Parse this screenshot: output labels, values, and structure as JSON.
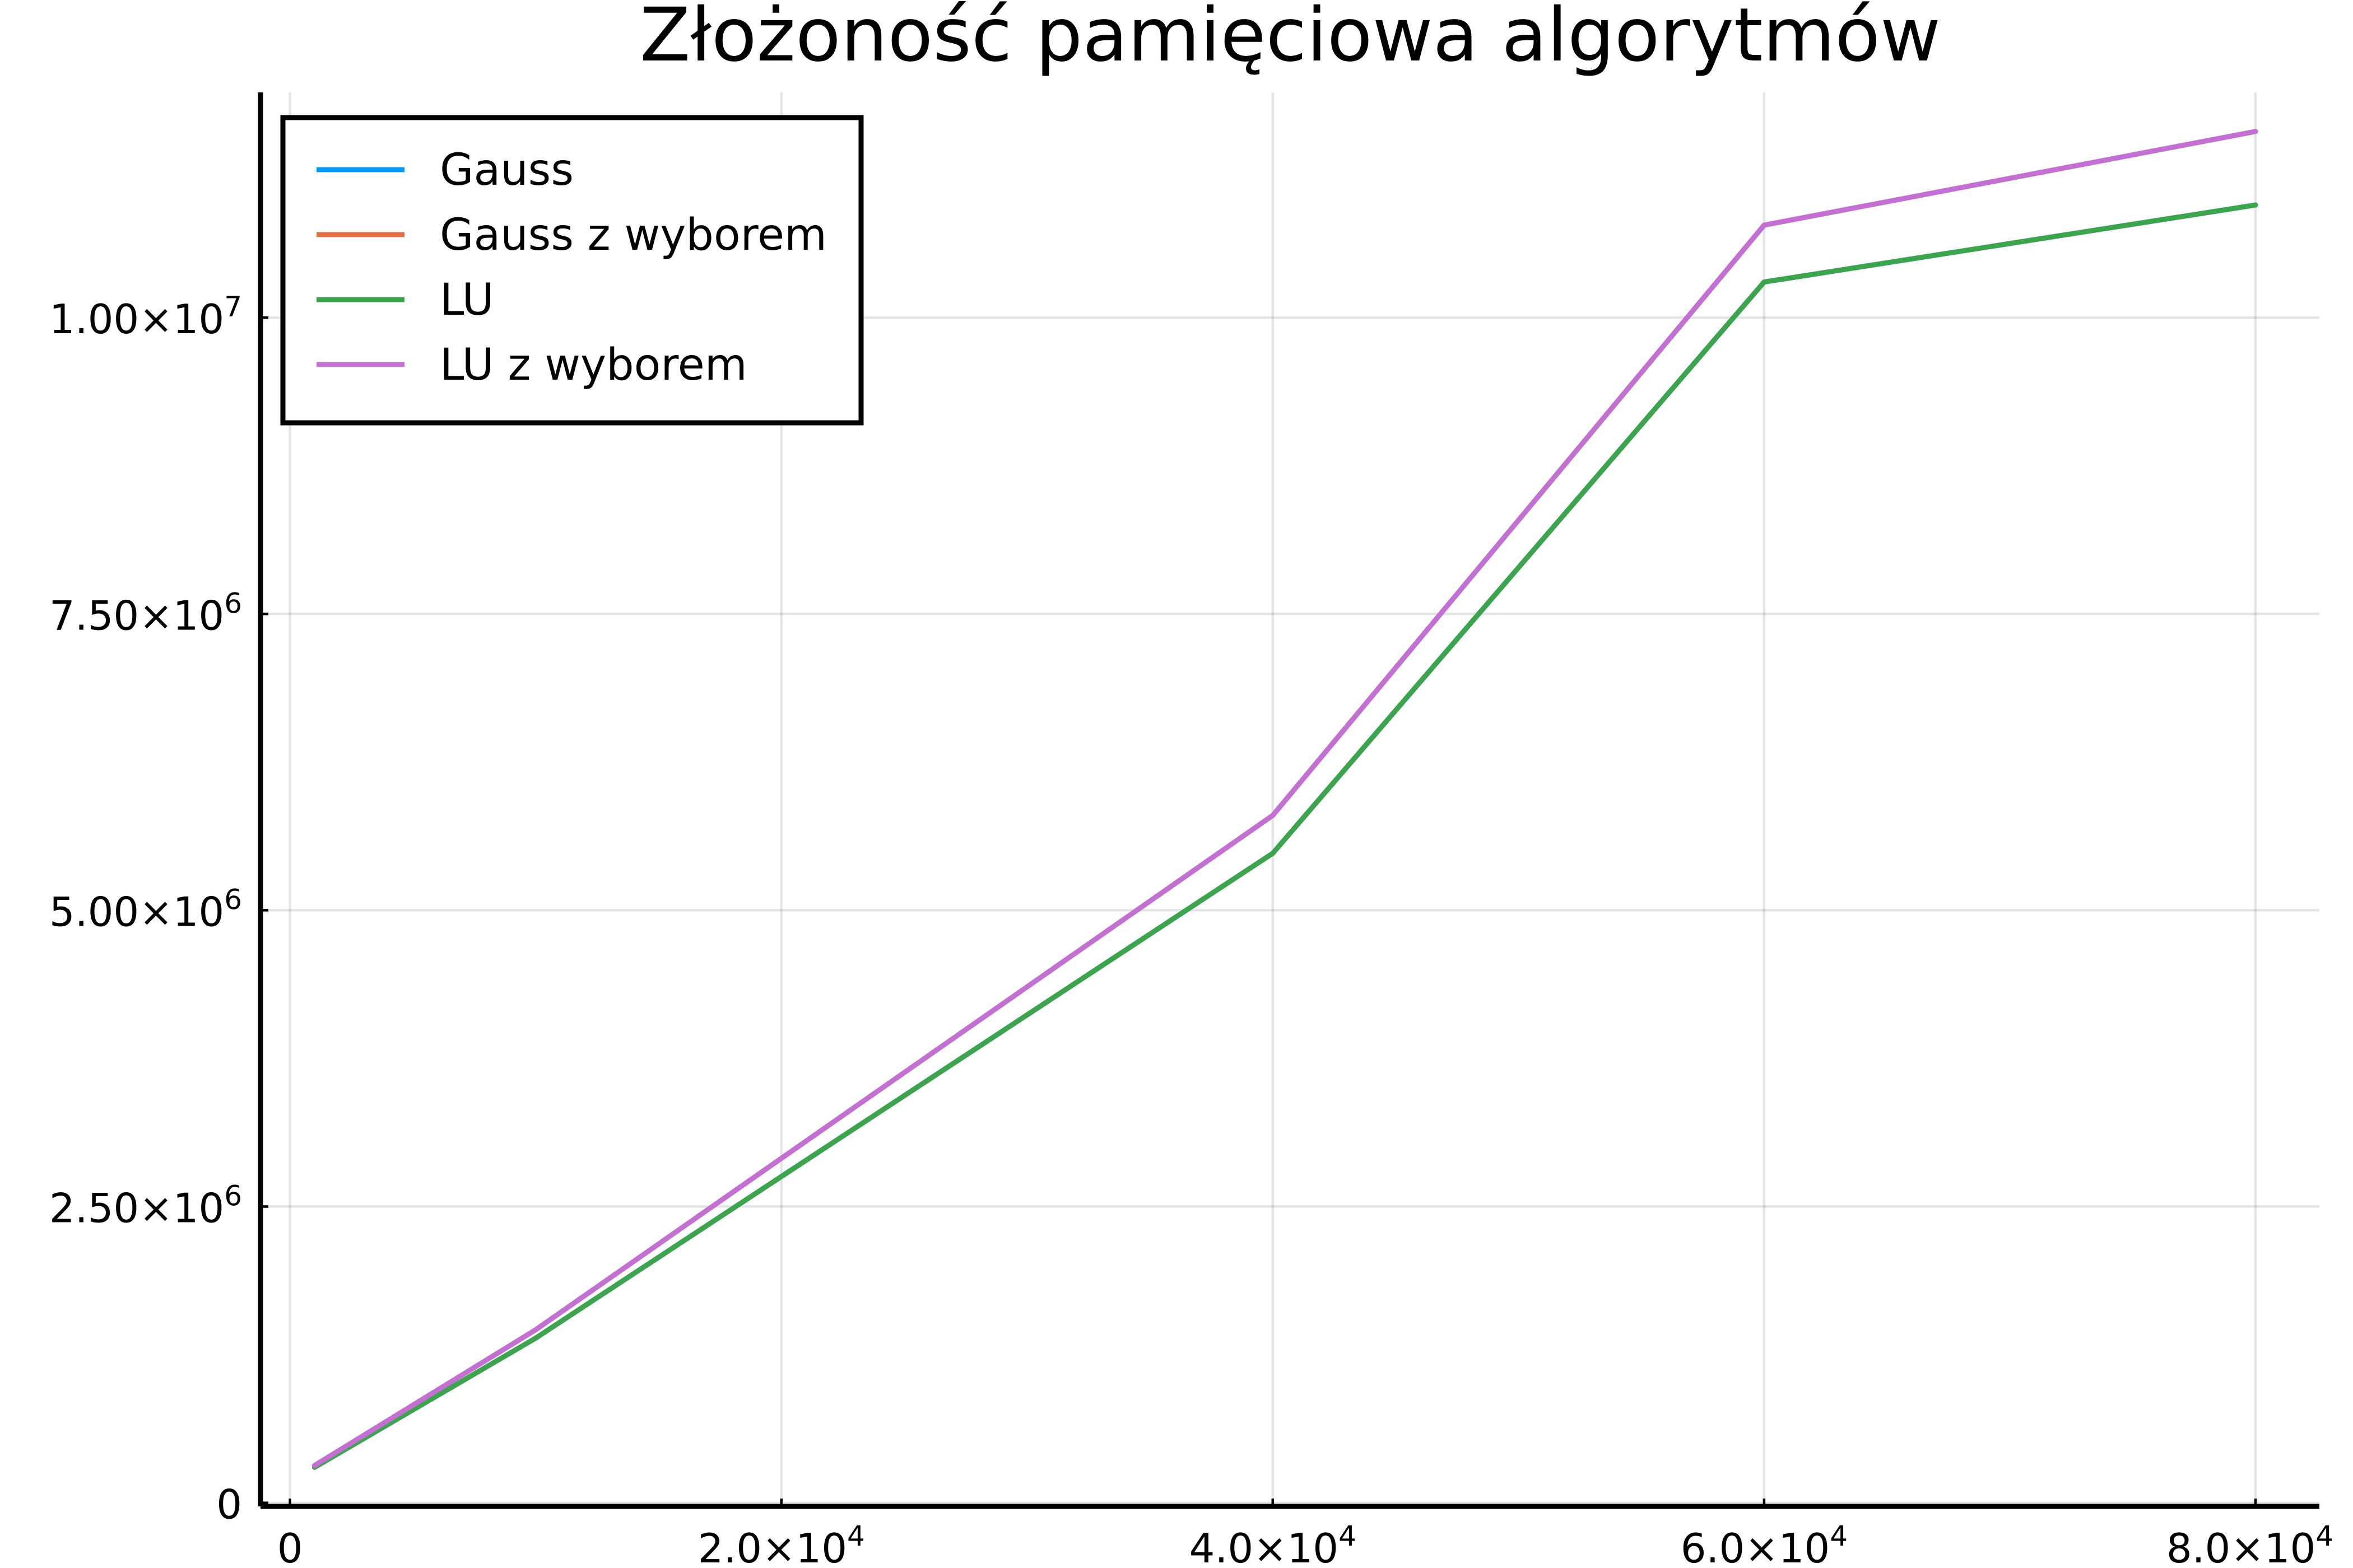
{
  "chart_data": {
    "type": "line",
    "title": "Złożoność pamięciowa algorytmów",
    "xlabel": "",
    "ylabel": "",
    "xlim": [
      -1200,
      82600
    ],
    "ylim": [
      -30000,
      11900000
    ],
    "grid": true,
    "legend_position": "top-left",
    "x_ticks": [
      {
        "value": 0,
        "base": "0",
        "exp": ""
      },
      {
        "value": 20000,
        "base": "2.0×10",
        "exp": "4"
      },
      {
        "value": 40000,
        "base": "4.0×10",
        "exp": "4"
      },
      {
        "value": 60000,
        "base": "6.0×10",
        "exp": "4"
      },
      {
        "value": 80000,
        "base": "8.0×10",
        "exp": "4"
      }
    ],
    "y_ticks": [
      {
        "value": 0,
        "base": "0",
        "exp": ""
      },
      {
        "value": 2500000,
        "base": "2.50×10",
        "exp": "6"
      },
      {
        "value": 5000000,
        "base": "5.00×10",
        "exp": "6"
      },
      {
        "value": 7500000,
        "base": "7.50×10",
        "exp": "6"
      },
      {
        "value": 10000000,
        "base": "1.00×10",
        "exp": "7"
      }
    ],
    "x": [
      1000,
      10000,
      40000,
      60000,
      80000
    ],
    "series": [
      {
        "name": "Gauss",
        "color": "#009af9",
        "values": [
          300000,
          1390000,
          5480000,
          10300000,
          10950000
        ]
      },
      {
        "name": "Gauss z wyborem",
        "color": "#e26f46",
        "values": [
          315000,
          1460000,
          5800000,
          10780000,
          11570000
        ]
      },
      {
        "name": "LU",
        "color": "#3da44d",
        "values": [
          300000,
          1390000,
          5480000,
          10300000,
          10950000
        ]
      },
      {
        "name": "LU z wyborem",
        "color": "#c271d2",
        "values": [
          315000,
          1460000,
          5800000,
          10780000,
          11570000
        ]
      }
    ]
  }
}
